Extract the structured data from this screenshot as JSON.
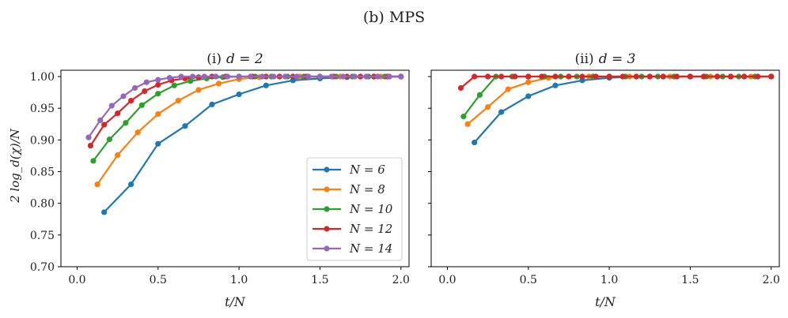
{
  "figure": {
    "title": "(b) MPS"
  },
  "chart_data": [
    {
      "type": "line",
      "title": "(i) d = 2",
      "title_prefix": "(i)",
      "title_math": "d = 2",
      "xlabel": "t/N",
      "ylabel": "2 log_d(χ)/N",
      "xlim": [
        -0.1,
        2.05
      ],
      "ylim": [
        0.7,
        1.01
      ],
      "xticks": [
        0.0,
        0.5,
        1.0,
        1.5,
        2.0
      ],
      "xtick_labels": [
        "0.0",
        "0.5",
        "1.0",
        "1.5",
        "2.0"
      ],
      "yticks": [
        0.7,
        0.75,
        0.8,
        0.85,
        0.9,
        0.95,
        1.0
      ],
      "ytick_labels": [
        "0.70",
        "0.75",
        "0.80",
        "0.85",
        "0.90",
        "0.95",
        "1.00"
      ],
      "legend": {
        "position": "bottom-right"
      },
      "series": [
        {
          "name": "N = 6",
          "color": "#1f77b4",
          "x": [
            0.167,
            0.333,
            0.5,
            0.667,
            0.833,
            1.0,
            1.167,
            1.333,
            1.5,
            1.667,
            1.833,
            2.0
          ],
          "y": [
            0.786,
            0.83,
            0.894,
            0.922,
            0.956,
            0.972,
            0.986,
            0.994,
            0.997,
            0.999,
            1.0,
            1.0
          ]
        },
        {
          "name": "N = 8",
          "color": "#ff7f0e",
          "x": [
            0.125,
            0.25,
            0.375,
            0.5,
            0.625,
            0.75,
            0.875,
            1.0,
            1.125,
            1.25,
            1.375,
            1.5,
            1.625,
            1.75,
            1.875,
            2.0
          ],
          "y": [
            0.83,
            0.876,
            0.912,
            0.941,
            0.962,
            0.979,
            0.989,
            0.996,
            0.999,
            1.0,
            1.0,
            1.0,
            1.0,
            1.0,
            1.0,
            1.0
          ]
        },
        {
          "name": "N = 10",
          "color": "#2ca02c",
          "x": [
            0.1,
            0.2,
            0.3,
            0.4,
            0.5,
            0.6,
            0.7,
            0.8,
            0.9,
            1.0,
            1.1,
            1.2,
            1.3,
            1.4,
            1.5,
            1.6,
            1.7,
            1.8,
            1.9,
            2.0
          ],
          "y": [
            0.867,
            0.901,
            0.927,
            0.955,
            0.973,
            0.986,
            0.993,
            0.997,
            0.999,
            1.0,
            1.0,
            1.0,
            1.0,
            1.0,
            1.0,
            1.0,
            1.0,
            1.0,
            1.0,
            1.0
          ]
        },
        {
          "name": "N = 12",
          "color": "#d62728",
          "x": [
            0.083,
            0.167,
            0.25,
            0.333,
            0.417,
            0.5,
            0.583,
            0.667,
            0.75,
            0.833,
            0.917,
            1.0,
            1.083,
            1.167,
            1.25,
            1.333,
            1.417,
            1.5,
            1.583,
            1.667,
            1.75,
            1.833,
            1.917,
            2.0
          ],
          "y": [
            0.891,
            0.924,
            0.942,
            0.962,
            0.977,
            0.987,
            0.994,
            0.997,
            0.999,
            1.0,
            1.0,
            1.0,
            1.0,
            1.0,
            1.0,
            1.0,
            1.0,
            1.0,
            1.0,
            1.0,
            1.0,
            1.0,
            1.0,
            1.0
          ]
        },
        {
          "name": "N = 14",
          "color": "#9467bd",
          "x": [
            0.071,
            0.143,
            0.214,
            0.286,
            0.357,
            0.429,
            0.5,
            0.571,
            0.643,
            0.714,
            0.786,
            0.857,
            0.929,
            1.0,
            1.071,
            1.143,
            1.214,
            1.286,
            1.357,
            1.429,
            1.5,
            1.571,
            1.643,
            1.714,
            1.786,
            1.857,
            1.929,
            2.0
          ],
          "y": [
            0.904,
            0.931,
            0.954,
            0.969,
            0.982,
            0.991,
            0.995,
            0.998,
            1.0,
            1.0,
            1.0,
            1.0,
            1.0,
            1.0,
            1.0,
            1.0,
            1.0,
            1.0,
            1.0,
            1.0,
            1.0,
            1.0,
            1.0,
            1.0,
            1.0,
            1.0,
            1.0,
            1.0
          ]
        }
      ]
    },
    {
      "type": "line",
      "title": "(ii) d = 3",
      "title_prefix": "(ii)",
      "title_math": "d = 3",
      "xlabel": "t/N",
      "ylabel": "",
      "xlim": [
        -0.1,
        2.05
      ],
      "ylim": [
        0.7,
        1.01
      ],
      "xticks": [
        0.0,
        0.5,
        1.0,
        1.5,
        2.0
      ],
      "xtick_labels": [
        "0.0",
        "0.5",
        "1.0",
        "1.5",
        "2.0"
      ],
      "yticks": [
        0.7,
        0.75,
        0.8,
        0.85,
        0.9,
        0.95,
        1.0
      ],
      "ytick_labels": [],
      "series": [
        {
          "name": "N = 6",
          "color": "#1f77b4",
          "x": [
            0.167,
            0.333,
            0.5,
            0.667,
            0.833,
            1.0,
            1.167,
            1.333,
            1.5,
            1.667,
            1.833,
            2.0
          ],
          "y": [
            0.896,
            0.944,
            0.969,
            0.986,
            0.994,
            0.998,
            1.0,
            1.0,
            1.0,
            1.0,
            1.0,
            1.0
          ]
        },
        {
          "name": "N = 8",
          "color": "#ff7f0e",
          "x": [
            0.125,
            0.25,
            0.375,
            0.5,
            0.625,
            0.75,
            0.875,
            1.0,
            1.125,
            1.25,
            1.375,
            1.5,
            1.625,
            1.75,
            1.875,
            2.0
          ],
          "y": [
            0.925,
            0.952,
            0.98,
            0.991,
            0.998,
            1.0,
            1.0,
            1.0,
            1.0,
            1.0,
            1.0,
            1.0,
            1.0,
            1.0,
            1.0,
            1.0
          ]
        },
        {
          "name": "N = 10",
          "color": "#2ca02c",
          "x": [
            0.1,
            0.2,
            0.3,
            0.4,
            0.5,
            0.6,
            0.7,
            0.8,
            0.9,
            1.0,
            1.1,
            1.2,
            1.3,
            1.4,
            1.5,
            1.6,
            1.7,
            1.8,
            1.9,
            2.0
          ],
          "y": [
            0.937,
            0.971,
            1.0,
            1.0,
            1.0,
            1.0,
            1.0,
            1.0,
            1.0,
            1.0,
            1.0,
            1.0,
            1.0,
            1.0,
            1.0,
            1.0,
            1.0,
            1.0,
            1.0,
            1.0
          ]
        },
        {
          "name": "N = 12",
          "color": "#d62728",
          "x": [
            0.083,
            0.167,
            0.25,
            0.333,
            0.417,
            0.5,
            0.583,
            0.667,
            0.75,
            0.833,
            0.917,
            1.0,
            1.083,
            1.167,
            1.25,
            1.333,
            1.417,
            1.5,
            1.583,
            1.667,
            1.75,
            1.833,
            1.917,
            2.0
          ],
          "y": [
            0.982,
            1.0,
            1.0,
            1.0,
            1.0,
            1.0,
            1.0,
            1.0,
            1.0,
            1.0,
            1.0,
            1.0,
            1.0,
            1.0,
            1.0,
            1.0,
            1.0,
            1.0,
            1.0,
            1.0,
            1.0,
            1.0,
            1.0,
            1.0
          ]
        }
      ]
    }
  ]
}
